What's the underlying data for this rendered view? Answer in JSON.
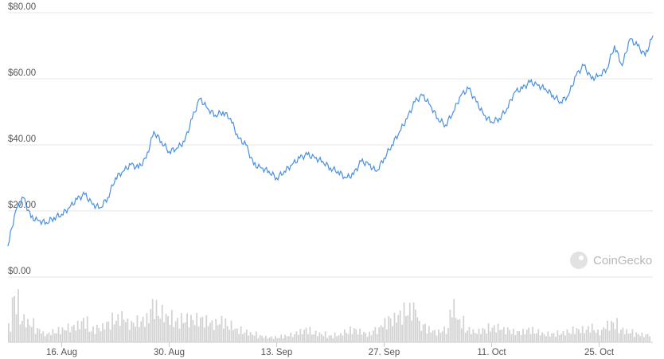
{
  "chart_data": {
    "type": "line",
    "title": "",
    "xlabel": "",
    "ylabel": "",
    "y_tick_labels": [
      "$80.00",
      "$60.00",
      "$40.00",
      "$20.00",
      "$0.00"
    ],
    "y_ticks": [
      80,
      60,
      40,
      20,
      0
    ],
    "ylim": [
      0,
      80
    ],
    "x_tick_labels": [
      "16. Aug",
      "30. Aug",
      "13. Sep",
      "27. Sep",
      "11. Oct",
      "25. Oct"
    ],
    "x_tick_dates": [
      "2021-08-16",
      "2021-08-30",
      "2021-09-13",
      "2021-09-27",
      "2021-10-11",
      "2021-10-25"
    ],
    "xlim": [
      "2021-08-09",
      "2021-11-01"
    ],
    "grid": true,
    "series": [
      {
        "dates": [
          "2021-08-09",
          "2021-08-10",
          "2021-08-11",
          "2021-08-12",
          "2021-08-13",
          "2021-08-14",
          "2021-08-15",
          "2021-08-16",
          "2021-08-17",
          "2021-08-18",
          "2021-08-19",
          "2021-08-20",
          "2021-08-21",
          "2021-08-22",
          "2021-08-23",
          "2021-08-24",
          "2021-08-25",
          "2021-08-26",
          "2021-08-27",
          "2021-08-28",
          "2021-08-29",
          "2021-08-30",
          "2021-08-31",
          "2021-09-01",
          "2021-09-02",
          "2021-09-03",
          "2021-09-04",
          "2021-09-05",
          "2021-09-06",
          "2021-09-07",
          "2021-09-08",
          "2021-09-09",
          "2021-09-10",
          "2021-09-11",
          "2021-09-12",
          "2021-09-13",
          "2021-09-14",
          "2021-09-15",
          "2021-09-16",
          "2021-09-17",
          "2021-09-18",
          "2021-09-19",
          "2021-09-20",
          "2021-09-21",
          "2021-09-22",
          "2021-09-23",
          "2021-09-24",
          "2021-09-25",
          "2021-09-26",
          "2021-09-27",
          "2021-09-28",
          "2021-09-29",
          "2021-09-30",
          "2021-10-01",
          "2021-10-02",
          "2021-10-03",
          "2021-10-04",
          "2021-10-05",
          "2021-10-06",
          "2021-10-07",
          "2021-10-08",
          "2021-10-09",
          "2021-10-10",
          "2021-10-11",
          "2021-10-12",
          "2021-10-13",
          "2021-10-14",
          "2021-10-15",
          "2021-10-16",
          "2021-10-17",
          "2021-10-18",
          "2021-10-19",
          "2021-10-20",
          "2021-10-21",
          "2021-10-22",
          "2021-10-23",
          "2021-10-24",
          "2021-10-25",
          "2021-10-26",
          "2021-10-27",
          "2021-10-28",
          "2021-10-29",
          "2021-10-30",
          "2021-10-31",
          "2021-11-01"
        ],
        "values": [
          9.5,
          20,
          24,
          18,
          17,
          16.5,
          18,
          19,
          21,
          23.5,
          25,
          22,
          21,
          24,
          30,
          32,
          34,
          33,
          36,
          44,
          41,
          38,
          39,
          41,
          48,
          54,
          51,
          49,
          50,
          48,
          42,
          40,
          34,
          33,
          32,
          30,
          32,
          34,
          36,
          37,
          36,
          35,
          33,
          32,
          30,
          31,
          35,
          34,
          32,
          36,
          40,
          44,
          48,
          53,
          55,
          52,
          48,
          46,
          50,
          55,
          57,
          53,
          49,
          47,
          48,
          51,
          56,
          57,
          59,
          58,
          57,
          55,
          53,
          55,
          61,
          64,
          60,
          61,
          63,
          70,
          64,
          72,
          70,
          67,
          73
        ]
      }
    ],
    "volume": {
      "dates_note": "same dates as price series",
      "values": [
        0.35,
        1.0,
        0.55,
        0.45,
        0.3,
        0.2,
        0.25,
        0.3,
        0.35,
        0.4,
        0.5,
        0.3,
        0.35,
        0.45,
        0.55,
        0.6,
        0.45,
        0.5,
        0.55,
        0.85,
        0.7,
        0.6,
        0.5,
        0.55,
        0.55,
        0.55,
        0.5,
        0.45,
        0.5,
        0.4,
        0.3,
        0.25,
        0.2,
        0.15,
        0.12,
        0.12,
        0.15,
        0.18,
        0.25,
        0.3,
        0.22,
        0.2,
        0.15,
        0.18,
        0.25,
        0.3,
        0.25,
        0.2,
        0.3,
        0.45,
        0.55,
        0.65,
        0.75,
        0.8,
        0.4,
        0.3,
        0.25,
        0.3,
        0.8,
        0.5,
        0.3,
        0.25,
        0.3,
        0.35,
        0.35,
        0.3,
        0.25,
        0.25,
        0.3,
        0.25,
        0.2,
        0.2,
        0.22,
        0.25,
        0.3,
        0.3,
        0.35,
        0.25,
        0.4,
        0.45,
        0.3,
        0.25,
        0.2,
        0.18,
        0.2
      ]
    },
    "watermark": "CoinGecko"
  },
  "colors": {
    "line": "#4a90e2",
    "volume": "#d3d3d3",
    "grid": "#e6e6e6",
    "label": "#555555"
  }
}
